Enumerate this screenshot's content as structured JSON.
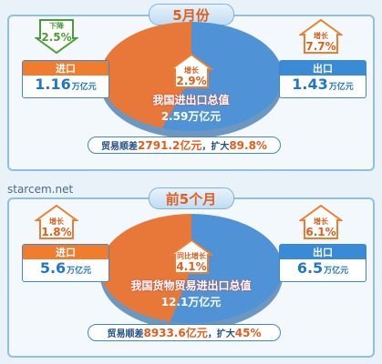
{
  "chart_data": [
    {
      "type": "pie",
      "title": "5月份",
      "center_label": "我国进出口总值",
      "total": "2.59万亿元",
      "total_growth_label": "增长",
      "total_growth": "2.9%",
      "slices": [
        {
          "name": "进口",
          "value": 1.16,
          "unit": "万亿元",
          "change_label": "下降",
          "change": "2.5%",
          "direction": "down"
        },
        {
          "name": "出口",
          "value": 1.43,
          "unit": "万亿元",
          "change_label": "增长",
          "change": "7.7%",
          "direction": "up"
        }
      ],
      "trade_surplus": {
        "prefix": "贸易顺差",
        "value": "2791.2亿元",
        "middle": "，扩大",
        "change": "89.8%"
      }
    },
    {
      "type": "pie",
      "title": "前5个月",
      "center_label": "我国货物贸易进出口总值",
      "total": "12.1万亿元",
      "total_growth_label": "同比增长",
      "total_growth": "4.1%",
      "slices": [
        {
          "name": "进口",
          "value": 5.6,
          "unit": "万亿元",
          "change_label": "增长",
          "change": "1.8%",
          "direction": "up"
        },
        {
          "name": "出口",
          "value": 6.5,
          "unit": "万亿元",
          "change_label": "增长",
          "change": "6.1%",
          "direction": "up"
        }
      ],
      "trade_surplus": {
        "prefix": "贸易顺差",
        "value": "8933.6亿元",
        "middle": "，扩大",
        "change": "45%"
      }
    }
  ],
  "watermark": "starcem.net",
  "colors": {
    "import": "#e8773a",
    "export": "#4f93d6",
    "accent": "#e35d1b"
  }
}
